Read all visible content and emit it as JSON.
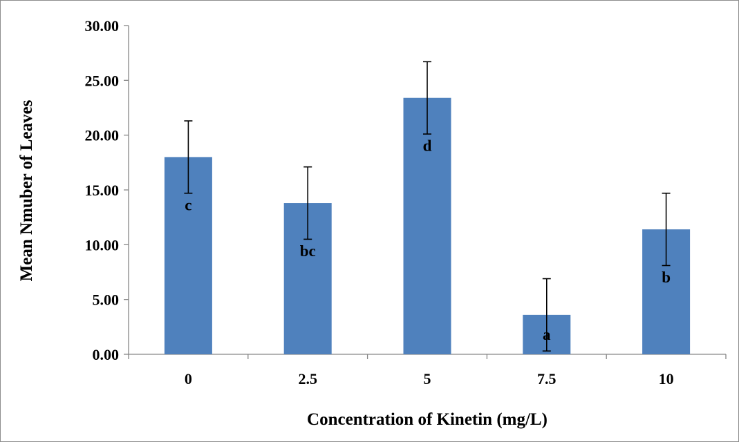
{
  "chart_data": {
    "type": "bar",
    "title": "",
    "xlabel": "Concentration of Kinetin (mg/L)",
    "ylabel": "Mean Nmuber of Leaves",
    "categories": [
      "0",
      "2.5",
      "5",
      "7.5",
      "10"
    ],
    "series": [
      {
        "values": [
          18.0,
          13.8,
          23.4,
          3.6,
          11.4
        ],
        "errors": [
          3.3,
          3.3,
          3.3,
          3.3,
          3.3
        ],
        "letters": [
          "c",
          "bc",
          "d",
          "a",
          "b"
        ]
      }
    ],
    "ylim": [
      0,
      30
    ],
    "yticks": [
      "0.00",
      "5.00",
      "10.00",
      "15.00",
      "20.00",
      "25.00",
      "30.00"
    ],
    "grid": false,
    "legend": "none",
    "bar_color": "#4f81bd"
  }
}
